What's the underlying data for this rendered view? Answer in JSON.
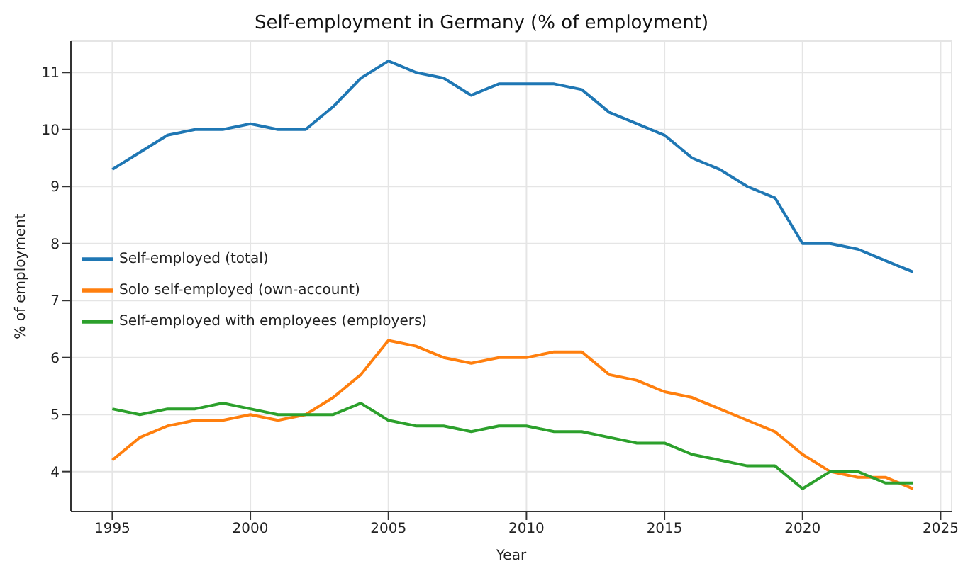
{
  "chart_data": {
    "type": "line",
    "title": "Self-employment in Germany (% of employment)",
    "xlabel": "Year",
    "ylabel": "% of employment",
    "x": [
      1995,
      1996,
      1997,
      1998,
      1999,
      2000,
      2001,
      2002,
      2003,
      2004,
      2005,
      2006,
      2007,
      2008,
      2009,
      2010,
      2011,
      2012,
      2013,
      2014,
      2015,
      2016,
      2017,
      2018,
      2019,
      2020,
      2021,
      2022,
      2023,
      2024
    ],
    "series": [
      {
        "name": "Self-employed (total)",
        "color": "#1f77b4",
        "values": [
          9.3,
          9.6,
          9.9,
          10.0,
          10.0,
          10.1,
          10.0,
          10.0,
          10.4,
          10.9,
          11.2,
          11.0,
          10.9,
          10.6,
          10.8,
          10.8,
          10.8,
          10.7,
          10.3,
          10.1,
          9.9,
          9.5,
          9.3,
          9.0,
          8.8,
          8.0,
          8.0,
          7.9,
          7.7,
          7.5
        ]
      },
      {
        "name": "Solo self-employed (own-account)",
        "color": "#ff7f0e",
        "values": [
          4.2,
          4.6,
          4.8,
          4.9,
          4.9,
          5.0,
          4.9,
          5.0,
          5.3,
          5.7,
          6.3,
          6.2,
          6.0,
          5.9,
          6.0,
          6.0,
          6.1,
          6.1,
          5.7,
          5.6,
          5.4,
          5.3,
          5.1,
          4.9,
          4.7,
          4.3,
          4.0,
          3.9,
          3.9,
          3.7
        ]
      },
      {
        "name": "Self-employed with employees (employers)",
        "color": "#2ca02c",
        "values": [
          5.1,
          5.0,
          5.1,
          5.1,
          5.2,
          5.1,
          5.0,
          5.0,
          5.0,
          5.2,
          4.9,
          4.8,
          4.8,
          4.7,
          4.8,
          4.8,
          4.7,
          4.7,
          4.6,
          4.5,
          4.5,
          4.3,
          4.2,
          4.1,
          4.1,
          3.7,
          4.0,
          4.0,
          3.8,
          3.8
        ]
      }
    ],
    "xlim": [
      1993.5,
      2025.4
    ],
    "xticks": [
      1995,
      2000,
      2005,
      2010,
      2015,
      2020,
      2025
    ],
    "ylim": [
      3.3,
      11.55
    ],
    "yticks": [
      4,
      5,
      6,
      7,
      8,
      9,
      10,
      11
    ],
    "grid": true,
    "legend": "left",
    "marker": "none",
    "line_style": "solid"
  }
}
